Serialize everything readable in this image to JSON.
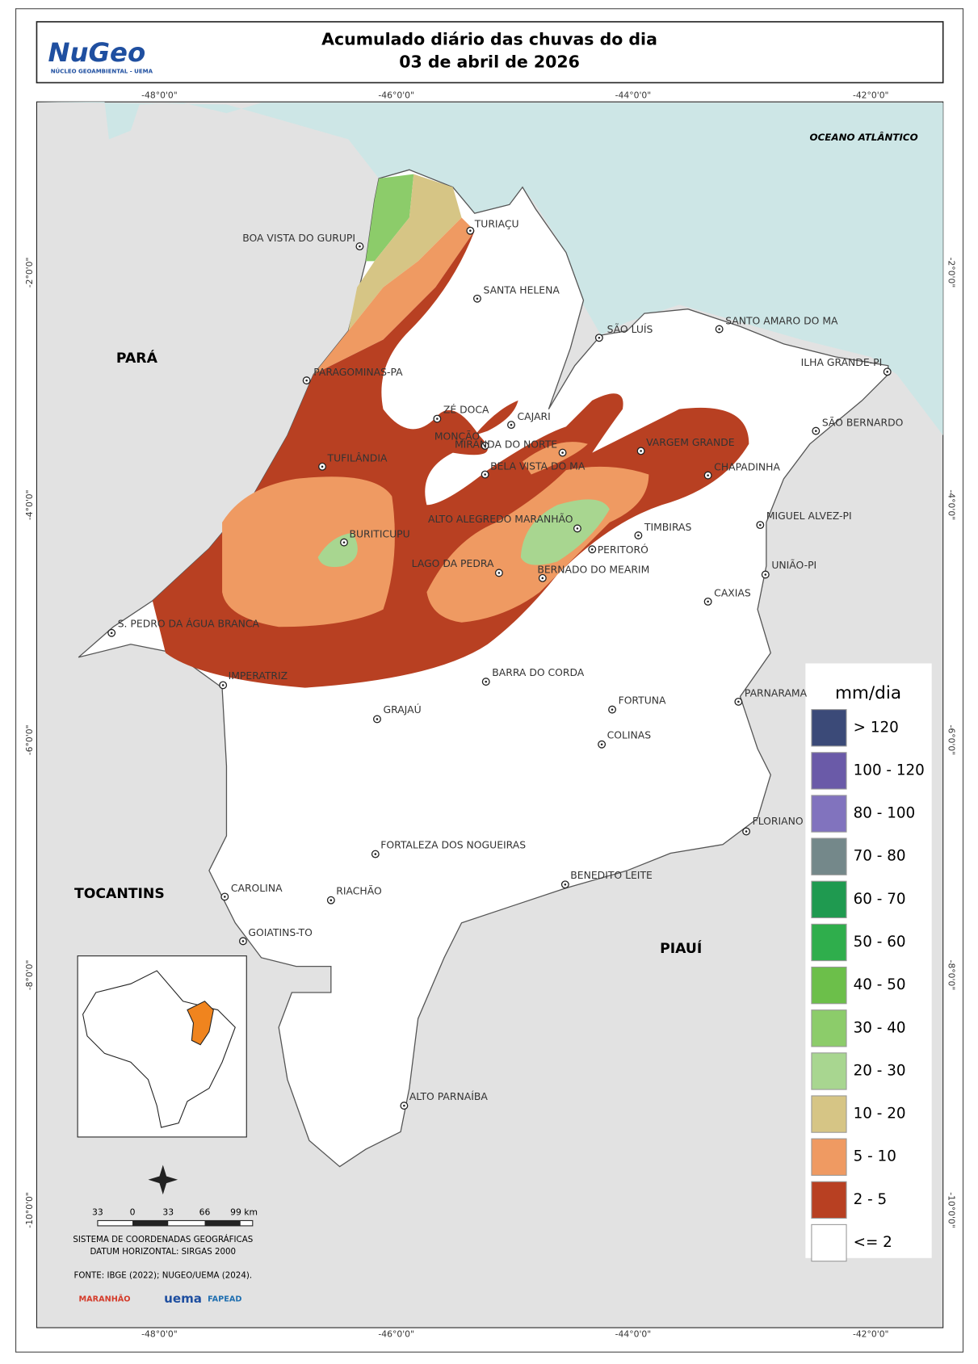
{
  "header": {
    "logo": "NuGeo",
    "logo_sub": "NÚCLEO GEOAMBIENTAL - UEMA",
    "title": "Acumulado diário das chuvas do dia",
    "date": "03 de abril de 2026"
  },
  "graticule": {
    "lon_labels": [
      "-48°0'0\"",
      "-46°0'0\"",
      "-44°0'0\"",
      "-42°0'0\""
    ],
    "lat_labels": [
      "-2°0'0\"",
      "-4°0'0\"",
      "-6°0'0\"",
      "-8°0'0\"",
      "-10°0'0\""
    ]
  },
  "ocean": "OCEANO ATLÂNTICO",
  "regions": [
    "PARÁ",
    "TOCANTINS",
    "PIAUÍ"
  ],
  "cities": [
    "TURIAÇU",
    "BOA VISTA DO GURUPI",
    "SANTA HELENA",
    "SÃO LUÍS",
    "SANTO AMARO DO MA",
    "ILHA GRANDE-PI",
    "PARAGOMINAS-PA",
    "ZÉ DOCA",
    "CAJARI",
    "SÃO BERNARDO",
    "MONÇÃO",
    "MIRANDA DO NORTE",
    "VARGEM GRANDE",
    "TUFILÂNDIA",
    "BELA VISTA DO MA",
    "CHAPADINHA",
    "MIGUEL ALVEZ-PI",
    "TIMBIRAS",
    "ALTO ALEGREDO MARANHÃO",
    "BURITICUPU",
    "PERITORÓ",
    "UNIÃO-PI",
    "LAGO DA PEDRA",
    "BERNADO DO MEARIM",
    "CAXIAS",
    "S. PEDRO DA ÁGUA BRANCA",
    "IMPERATRIZ",
    "BARRA DO CORDA",
    "PARNARAMA",
    "FORTUNA",
    "GRAJAÚ",
    "COLINAS",
    "FLORIANO",
    "FORTALEZA DOS NOGUEIRAS",
    "BENEDITO LEITE",
    "CAROLINA",
    "RIACHÃO",
    "GOIATINS-TO",
    "ALTO PARNAÍBA"
  ],
  "legend": {
    "title": "mm/dia",
    "items": [
      {
        "label": "> 120",
        "color": "#3b4a78"
      },
      {
        "label": "100 - 120",
        "color": "#6a5aa8"
      },
      {
        "label": "80 - 100",
        "color": "#8173be"
      },
      {
        "label": "70 - 80",
        "color": "#74888a"
      },
      {
        "label": "60 - 70",
        "color": "#1f9a50"
      },
      {
        "label": "50 - 60",
        "color": "#2fae4c"
      },
      {
        "label": "40 - 50",
        "color": "#6cbf4a"
      },
      {
        "label": "30 - 40",
        "color": "#8ccc6a"
      },
      {
        "label": "20 - 30",
        "color": "#a8d690"
      },
      {
        "label": "10 - 20",
        "color": "#d6c585"
      },
      {
        "label": "5 - 10",
        "color": "#ef9a62"
      },
      {
        "label": "2 - 5",
        "color": "#b84022"
      },
      {
        "label": "<= 2",
        "color": "#ffffff"
      }
    ]
  },
  "scale_bar": {
    "labels": [
      "33",
      "0",
      "33",
      "66",
      "99 km"
    ]
  },
  "notes": [
    "SISTEMA DE COORDENADAS GEOGRÁFICAS",
    "DATUM HORIZONTAL: SIRGAS 2000",
    "FONTE: IBGE (2022); NUGEO/UEMA (2024)."
  ],
  "sponsors": [
    "MARANHÃO",
    "uema",
    "FAPEAD"
  ]
}
